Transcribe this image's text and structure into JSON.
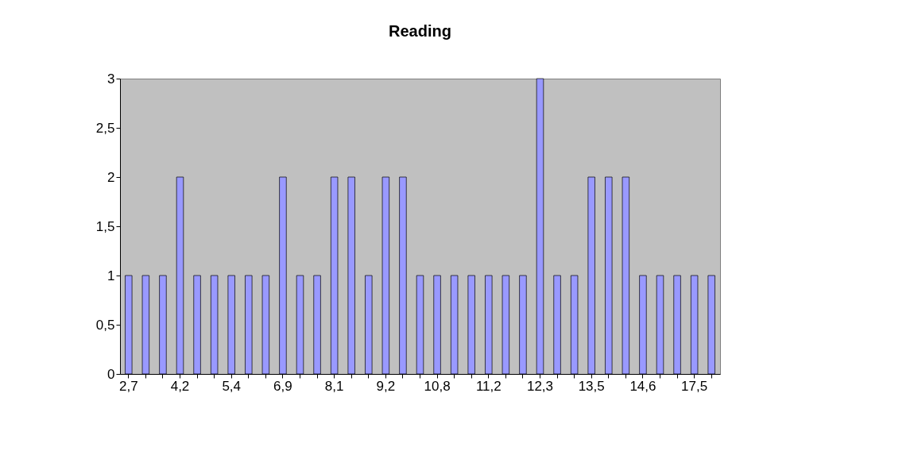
{
  "chart_data": {
    "type": "bar",
    "title": "Reading",
    "categories": [
      "2,7",
      null,
      null,
      "4,2",
      null,
      null,
      "5,4",
      null,
      null,
      "6,9",
      null,
      null,
      "8,1",
      null,
      null,
      "9,2",
      null,
      null,
      "10,8",
      null,
      null,
      "11,2",
      null,
      null,
      "12,3",
      null,
      null,
      "13,5",
      null,
      null,
      "14,6",
      null,
      null,
      "17,5",
      null
    ],
    "values": [
      1,
      1,
      1,
      2,
      1,
      1,
      1,
      1,
      1,
      2,
      1,
      1,
      2,
      2,
      1,
      2,
      2,
      1,
      1,
      1,
      1,
      1,
      1,
      1,
      3,
      1,
      1,
      2,
      2,
      2,
      1,
      1,
      1,
      1,
      1
    ],
    "color": "#9999ff",
    "ylim": [
      0,
      3
    ],
    "yticks": [
      0,
      {
        "value": 0.5,
        "label": "0,5"
      },
      1,
      {
        "value": 1.5,
        "label": "1,5"
      },
      2,
      {
        "value": 2.5,
        "label": "2,5"
      },
      3
    ],
    "grid": false
  }
}
